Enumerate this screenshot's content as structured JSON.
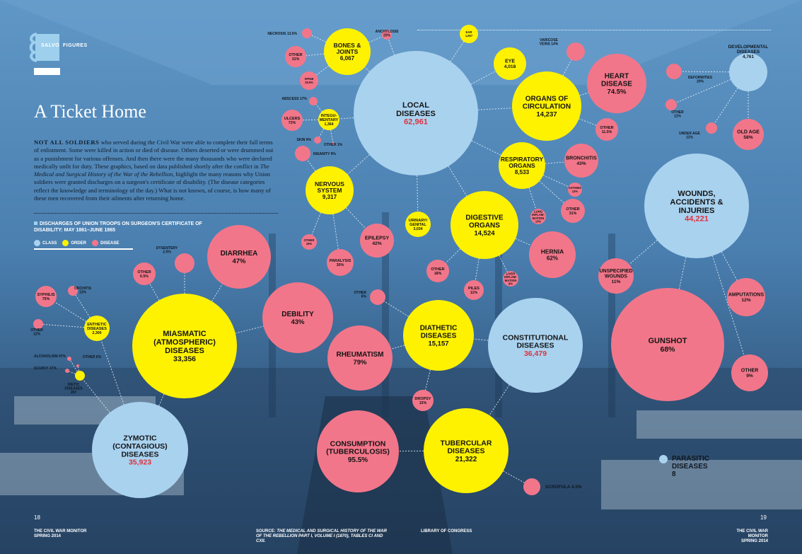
{
  "header": {
    "section": "SALVO",
    "subsection": "FIGURES"
  },
  "title": "A Ticket Home",
  "intro": {
    "lead": "NOT ALL SOLDIERS",
    "part1": " who served during the Civil War were able to complete their full terms of enlistment. Some were killed in action or died of disease. Others deserted or were drummed out as a punishment for various offenses. And then there were the many thousands who were declared medically unfit for duty. These graphics, based on data published shortly after the conflict in ",
    "book": "The Medical and Surgical History of the War of the Rebellion",
    "part2": ", highlight the many reasons why Union soldiers were granted discharges on a surgeon's certificate of disability. (The disease categories reflect the knowledge and terminology of the day.) What is not known, of course, is how many of these men recovered from their ailments after returning home."
  },
  "legend": {
    "title": "DISCHARGES OF UNION TROOPS ON SURGEON'S CERTIFICATE OF DISABILITY: MAY 1861–JUNE 1865",
    "items": [
      {
        "label": "CLASS",
        "color": "#a9d2ef"
      },
      {
        "label": "ORDER",
        "color": "#fff200"
      },
      {
        "label": "DISEASE",
        "color": "#f2768a"
      }
    ]
  },
  "colors": {
    "class": "#a9d2ef",
    "order": "#fff200",
    "disease": "#f2768a",
    "class_value": "#e0303e",
    "link": "#e9eef4"
  },
  "nodes": [
    {
      "id": "local",
      "type": "class",
      "lines": [
        "LOCAL",
        "DISEASES"
      ],
      "value": "62,961"
    },
    {
      "id": "constitutional",
      "type": "class",
      "lines": [
        "CONSTITUTIONAL",
        "DISEASES"
      ],
      "value": "36,479"
    },
    {
      "id": "wounds",
      "type": "class",
      "lines": [
        "WOUNDS,",
        "ACCIDENTS &",
        "INJURIES"
      ],
      "value": "44,221"
    },
    {
      "id": "zymotic",
      "type": "class",
      "lines": [
        "ZYMOTIC",
        "(CONTAGIOUS)",
        "DISEASES"
      ],
      "value": "35,923"
    },
    {
      "id": "developmental",
      "type": "class",
      "lines": [],
      "value": "",
      "ext": [
        "DEVELOPMENTAL",
        "DISEASES",
        "4,761"
      ]
    },
    {
      "id": "parasitic",
      "type": "class",
      "lines": [],
      "value": "",
      "ext": [
        "PARASITIC",
        "DISEASES",
        "8"
      ]
    },
    {
      "id": "bones",
      "type": "order",
      "lines": [
        "BONES &",
        "JOINTS"
      ],
      "value": "6,067"
    },
    {
      "id": "integ",
      "type": "order",
      "lines": [
        "INTEGU-",
        "MENTARY"
      ],
      "value": "1,364"
    },
    {
      "id": "nervous",
      "type": "order",
      "lines": [
        "NERVOUS",
        "SYSTEM"
      ],
      "value": "9,317"
    },
    {
      "id": "ear",
      "type": "order",
      "lines": [
        "EAR"
      ],
      "value": "1,667"
    },
    {
      "id": "eye",
      "type": "order",
      "lines": [
        "EYE"
      ],
      "value": "4,018"
    },
    {
      "id": "circulation",
      "type": "order",
      "lines": [
        "ORGANS OF",
        "CIRCULATION"
      ],
      "value": "14,237"
    },
    {
      "id": "respiratory",
      "type": "order",
      "lines": [
        "RESPIRATORY",
        "ORGANS"
      ],
      "value": "8,533"
    },
    {
      "id": "digestive",
      "type": "order",
      "lines": [
        "DIGESTIVE",
        "ORGANS"
      ],
      "value": "14,524"
    },
    {
      "id": "urinary",
      "type": "order",
      "lines": [
        "URINARY/",
        "GENITAL"
      ],
      "value": "3,034"
    },
    {
      "id": "diathetic",
      "type": "order",
      "lines": [
        "DIATHETIC",
        "DISEASES"
      ],
      "value": "15,157"
    },
    {
      "id": "tubercular",
      "type": "order",
      "lines": [
        "TUBERCULAR",
        "DISEASES"
      ],
      "value": "21,322"
    },
    {
      "id": "miasmatic",
      "type": "order",
      "lines": [
        "MIASMATIC",
        "(ATMOSPHERIC)",
        "DISEASES"
      ],
      "value": "33,356"
    },
    {
      "id": "enthetic",
      "type": "order",
      "lines": [
        "ENTHETIC",
        "DISEASES"
      ],
      "value": "2,300"
    },
    {
      "id": "dietic",
      "type": "order",
      "lines": [],
      "value": "",
      "ext": [
        "DIETIC",
        "DISEASES",
        "267"
      ]
    },
    {
      "id": "heart",
      "type": "disease",
      "lines": [
        "HEART",
        "DISEASE"
      ],
      "value": "74.5%"
    },
    {
      "id": "diarrhea",
      "type": "disease",
      "lines": [
        "DIARRHEA"
      ],
      "value": "47%"
    },
    {
      "id": "debility",
      "type": "disease",
      "lines": [
        "DEBILITY"
      ],
      "value": "43%"
    },
    {
      "id": "rheumatism",
      "type": "disease",
      "lines": [
        "RHEUMATISM"
      ],
      "value": "79%"
    },
    {
      "id": "consumption",
      "type": "disease",
      "lines": [
        "CONSUMPTION",
        "(TUBERCULOSIS)"
      ],
      "value": "95.5%"
    },
    {
      "id": "gunshot",
      "type": "disease",
      "lines": [
        "GUNSHOT"
      ],
      "value": "68%"
    },
    {
      "id": "hernia",
      "type": "disease",
      "lines": [
        "HERNIA"
      ],
      "value": "62%"
    },
    {
      "id": "bronchitis",
      "type": "disease",
      "lines": [
        "BRONCHITIS"
      ],
      "value": "43%"
    },
    {
      "id": "epilepsy",
      "type": "disease",
      "lines": [
        "EPILEPSY"
      ],
      "value": "42%"
    },
    {
      "id": "paralysis",
      "type": "disease",
      "lines": [
        "PARALYSIS"
      ],
      "value": "30%"
    },
    {
      "id": "amputations",
      "type": "disease",
      "lines": [
        "AMPUTATIONS"
      ],
      "value": "12%"
    },
    {
      "id": "wounds-other",
      "type": "disease",
      "lines": [
        "OTHER"
      ],
      "value": "9%"
    },
    {
      "id": "unspecified",
      "type": "disease",
      "lines": [
        "UNSPECIFIED",
        "WOUNDS"
      ],
      "value": "11%"
    },
    {
      "id": "old-age",
      "type": "disease",
      "lines": [
        "OLD AGE"
      ],
      "value": "58%"
    },
    {
      "id": "resp-other",
      "type": "disease",
      "lines": [
        "OTHER"
      ],
      "value": "31%"
    },
    {
      "id": "circ-other",
      "type": "disease",
      "lines": [
        "OTHER"
      ],
      "value": "11.5%"
    },
    {
      "id": "dig-other",
      "type": "disease",
      "lines": [
        "OTHER"
      ],
      "value": "18%"
    },
    {
      "id": "piles",
      "type": "disease",
      "lines": [
        "PILES"
      ],
      "value": "11%"
    },
    {
      "id": "lung-inflam",
      "type": "disease",
      "lines": [
        "LUNG",
        "INFLAM-",
        "MATION"
      ],
      "value": "13%"
    },
    {
      "id": "liver-inflam",
      "type": "disease",
      "lines": [
        "LIVER",
        "INFLAM-",
        "MATION"
      ],
      "value": "9%"
    },
    {
      "id": "asthma",
      "type": "disease",
      "lines": [
        "ASTHMA"
      ],
      "value": "13%"
    },
    {
      "id": "ulcers",
      "type": "disease",
      "lines": [
        "ULCERS"
      ],
      "value": "73%"
    },
    {
      "id": "spine",
      "type": "disease",
      "lines": [
        "SPINE"
      ],
      "value": "25.5%"
    },
    {
      "id": "bones-other",
      "type": "disease",
      "lines": [
        "OTHER"
      ],
      "value": "31%"
    },
    {
      "id": "nerv-other",
      "type": "disease",
      "lines": [
        "OTHER"
      ],
      "value": "19%"
    },
    {
      "id": "miasm-other",
      "type": "disease",
      "lines": [
        "OTHER"
      ],
      "value": "6.5%"
    },
    {
      "id": "syphilis",
      "type": "disease",
      "lines": [
        "SYPHILIS"
      ],
      "value": "75%"
    },
    {
      "id": "dropsy",
      "type": "disease",
      "lines": [
        "DROPSY"
      ],
      "value": "15%"
    },
    {
      "id": "varicose",
      "type": "disease",
      "lines": [],
      "value": "",
      "ext": [
        "VARICOSE",
        "VEINS 14%"
      ]
    },
    {
      "id": "necrosis",
      "type": "disease",
      "lines": [],
      "value": "",
      "ext": [
        "NECROSIS 13.5%"
      ]
    },
    {
      "id": "anchylosis",
      "type": "disease",
      "lines": [],
      "value": "",
      "ext": [
        "ANCHYLOSIS",
        "20%"
      ]
    },
    {
      "id": "abscess",
      "type": "disease",
      "lines": [],
      "value": "",
      "ext": [
        "ABSCESS 17%"
      ]
    },
    {
      "id": "skin",
      "type": "disease",
      "lines": [],
      "value": "",
      "ext": [
        "SKIN 9%"
      ]
    },
    {
      "id": "integ-other",
      "type": "disease",
      "lines": [],
      "value": "",
      "ext": [
        "OTHER 1%"
      ]
    },
    {
      "id": "insanity",
      "type": "disease",
      "lines": [],
      "value": "",
      "ext": [
        "INSANITY 9%"
      ]
    },
    {
      "id": "deformities",
      "type": "disease",
      "lines": [],
      "value": "",
      "ext": [
        "DEFORMITIES",
        "20%"
      ]
    },
    {
      "id": "dev-other",
      "type": "disease",
      "lines": [],
      "value": "",
      "ext": [
        "OTHER",
        "11%"
      ]
    },
    {
      "id": "under-age",
      "type": "disease",
      "lines": [],
      "value": "",
      "ext": [
        "UNDER AGE",
        "11%"
      ]
    },
    {
      "id": "dysentery",
      "type": "disease",
      "lines": [],
      "value": "",
      "ext": [
        "DYSENTERY",
        "2.5%"
      ]
    },
    {
      "id": "diath-other",
      "type": "disease",
      "lines": [],
      "value": "",
      "ext": [
        "OTHER",
        "6%"
      ]
    },
    {
      "id": "scrofula",
      "type": "disease",
      "lines": [],
      "value": "",
      "ext": [
        "SCROFULA 4.5%"
      ]
    },
    {
      "id": "orchitis",
      "type": "disease",
      "lines": [],
      "value": "",
      "ext": [
        "ORCHITIS",
        "13%"
      ]
    },
    {
      "id": "enth-other",
      "type": "disease",
      "lines": [],
      "value": "",
      "ext": [
        "OTHER",
        "12%"
      ]
    },
    {
      "id": "alcoholism",
      "type": "disease",
      "lines": [],
      "value": "",
      "ext": [
        "ALCOHOLISM 47%"
      ]
    },
    {
      "id": "scurvy",
      "type": "disease",
      "lines": [],
      "value": "",
      "ext": [
        "SCURVY 47%"
      ]
    },
    {
      "id": "dietic-other",
      "type": "disease",
      "lines": [],
      "value": "",
      "ext": [
        "OTHER 6%"
      ]
    }
  ],
  "footer": {
    "left_page": "18",
    "left_pub": "THE CIVIL WAR MONITOR",
    "left_issue": "SPRING 2014",
    "source_label": "SOURCE:",
    "source_text": "THE MEDICAL AND SURGICAL HISTORY OF THE WAR OF THE REBELLION PART I, VOLUME I (1870), TABLES CI AND CXII.",
    "credit": "LIBRARY OF CONGRESS",
    "right_page": "19",
    "right_pub": "THE CIVIL WAR MONITOR",
    "right_issue": "SPRING 2014"
  }
}
